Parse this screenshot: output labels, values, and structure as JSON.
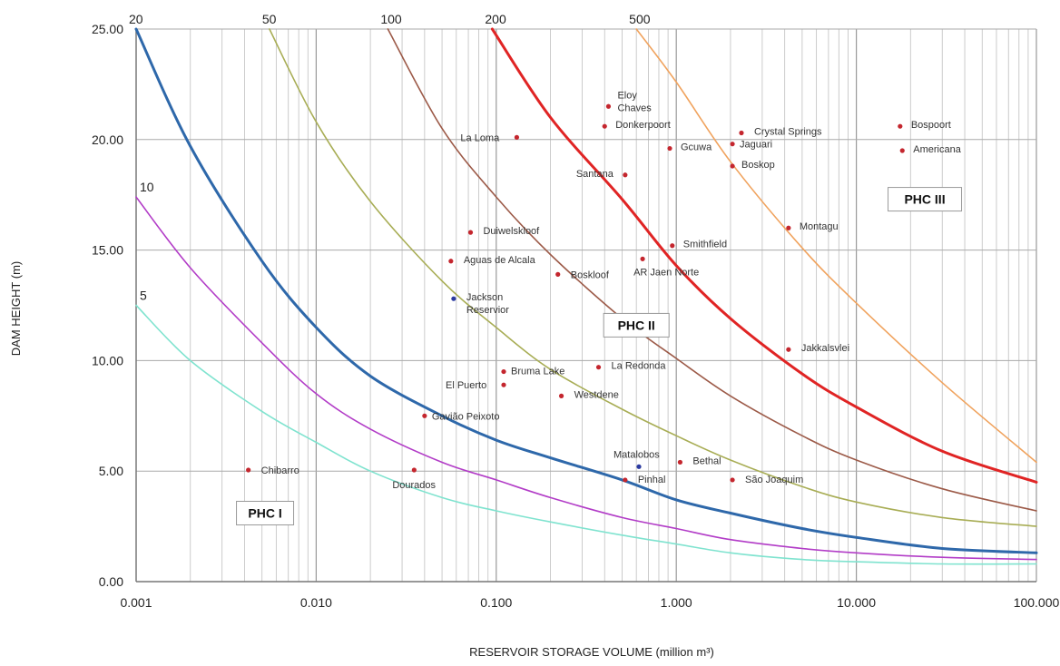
{
  "chart_data": {
    "type": "scatter",
    "x_scale": "log",
    "xlim": [
      0.001,
      100
    ],
    "ylim": [
      0,
      25
    ],
    "grid": true,
    "x_ticks": [
      {
        "value": 0.001,
        "label": "0.001"
      },
      {
        "value": 0.01,
        "label": "0.010"
      },
      {
        "value": 0.1,
        "label": "0.100"
      },
      {
        "value": 1,
        "label": "1.000"
      },
      {
        "value": 10,
        "label": "10.000"
      },
      {
        "value": 100,
        "label": "100.000"
      }
    ],
    "y_ticks": [
      {
        "value": 0,
        "label": "0.00"
      },
      {
        "value": 5,
        "label": "5.00"
      },
      {
        "value": 10,
        "label": "10.00"
      },
      {
        "value": 15,
        "label": "15.00"
      },
      {
        "value": 20,
        "label": "20.00"
      },
      {
        "value": 25,
        "label": "25.00"
      }
    ],
    "xlabel": "RESERVOIR STORAGE VOLUME (million m³)",
    "ylabel": "DAM HEIGHT (m)",
    "curves": [
      {
        "name": "5",
        "color": "#7fe3cf",
        "width": 1.6,
        "points": [
          [
            0.001,
            12.5
          ],
          [
            0.002,
            10.0
          ],
          [
            0.005,
            7.7
          ],
          [
            0.01,
            6.3
          ],
          [
            0.02,
            5.0
          ],
          [
            0.05,
            3.8
          ],
          [
            0.1,
            3.2
          ],
          [
            0.2,
            2.7
          ],
          [
            0.5,
            2.1
          ],
          [
            1,
            1.7
          ],
          [
            2,
            1.3
          ],
          [
            5,
            1.0
          ],
          [
            10,
            0.9
          ],
          [
            30,
            0.8
          ],
          [
            100,
            0.8
          ]
        ]
      },
      {
        "name": "10",
        "color": "#b23cc7",
        "width": 1.6,
        "points": [
          [
            0.001,
            17.4
          ],
          [
            0.002,
            14.2
          ],
          [
            0.005,
            10.8
          ],
          [
            0.01,
            8.5
          ],
          [
            0.02,
            6.9
          ],
          [
            0.05,
            5.4
          ],
          [
            0.1,
            4.6
          ],
          [
            0.2,
            3.8
          ],
          [
            0.5,
            2.9
          ],
          [
            1,
            2.4
          ],
          [
            2,
            1.9
          ],
          [
            5,
            1.5
          ],
          [
            10,
            1.3
          ],
          [
            30,
            1.1
          ],
          [
            100,
            1.0
          ]
        ]
      },
      {
        "name": "20",
        "color": "#2e68aa",
        "width": 3,
        "points": [
          [
            0.001,
            25.0
          ],
          [
            0.002,
            19.7
          ],
          [
            0.005,
            14.5
          ],
          [
            0.01,
            11.5
          ],
          [
            0.02,
            9.3
          ],
          [
            0.05,
            7.5
          ],
          [
            0.1,
            6.4
          ],
          [
            0.2,
            5.6
          ],
          [
            0.5,
            4.6
          ],
          [
            1,
            3.7
          ],
          [
            2,
            3.1
          ],
          [
            5,
            2.4
          ],
          [
            10,
            2.0
          ],
          [
            30,
            1.5
          ],
          [
            100,
            1.3
          ]
        ]
      },
      {
        "name": "50",
        "color": "#a8ad55",
        "width": 1.6,
        "points": [
          [
            0.0055,
            25.0
          ],
          [
            0.01,
            20.8
          ],
          [
            0.02,
            17.2
          ],
          [
            0.05,
            13.6
          ],
          [
            0.1,
            11.5
          ],
          [
            0.2,
            9.6
          ],
          [
            0.5,
            7.8
          ],
          [
            1,
            6.6
          ],
          [
            2,
            5.5
          ],
          [
            5,
            4.3
          ],
          [
            10,
            3.6
          ],
          [
            30,
            2.9
          ],
          [
            100,
            2.5
          ]
        ]
      },
      {
        "name": "100",
        "color": "#9c5a48",
        "width": 1.6,
        "points": [
          [
            0.025,
            25.0
          ],
          [
            0.05,
            20.5
          ],
          [
            0.1,
            17.4
          ],
          [
            0.2,
            14.8
          ],
          [
            0.5,
            11.9
          ],
          [
            1,
            10.1
          ],
          [
            2,
            8.4
          ],
          [
            5,
            6.6
          ],
          [
            10,
            5.5
          ],
          [
            30,
            4.2
          ],
          [
            100,
            3.2
          ]
        ]
      },
      {
        "name": "200",
        "color": "#e02424",
        "width": 3,
        "points": [
          [
            0.095,
            25.0
          ],
          [
            0.2,
            21.0
          ],
          [
            0.5,
            17.3
          ],
          [
            1,
            14.3
          ],
          [
            2,
            11.9
          ],
          [
            5,
            9.4
          ],
          [
            10,
            7.9
          ],
          [
            30,
            5.9
          ],
          [
            100,
            4.5
          ]
        ]
      },
      {
        "name": "500",
        "color": "#f0a35e",
        "width": 1.6,
        "points": [
          [
            0.6,
            25.0
          ],
          [
            1,
            22.6
          ],
          [
            2,
            19.0
          ],
          [
            5,
            15.1
          ],
          [
            10,
            12.6
          ],
          [
            30,
            9.0
          ],
          [
            100,
            5.4
          ]
        ]
      }
    ],
    "points": [
      {
        "label": "Chibarro",
        "x": 0.0042,
        "y": 5.05,
        "color": "#c4262e",
        "lx": 14,
        "ly": 0
      },
      {
        "label": "Dourados",
        "x": 0.035,
        "y": 5.05,
        "color": "#c4262e",
        "lx": -24,
        "ly": 16
      },
      {
        "label": "Gavião Peixoto",
        "x": 0.04,
        "y": 7.5,
        "color": "#c4262e",
        "lx": 8,
        "ly": 0
      },
      {
        "label": "El Puerto",
        "x": 0.11,
        "y": 8.9,
        "color": "#c4262e",
        "lx": -64,
        "ly": 0
      },
      {
        "label": "Bruma Lake",
        "x": 0.11,
        "y": 9.5,
        "color": "#c4262e",
        "lx": 8,
        "ly": -1
      },
      {
        "label": "La Redonda",
        "x": 0.37,
        "y": 9.7,
        "color": "#c4262e",
        "lx": 14,
        "ly": -2
      },
      {
        "label": "Westdene",
        "x": 0.23,
        "y": 8.4,
        "color": "#c4262e",
        "lx": 14,
        "ly": -2
      },
      {
        "label": "Matalobos",
        "x": 0.62,
        "y": 5.2,
        "color": "#2b3aa0",
        "lx": -28,
        "ly": -14
      },
      {
        "label": "Pinhal",
        "x": 0.52,
        "y": 4.6,
        "color": "#c4262e",
        "lx": 14,
        "ly": -1
      },
      {
        "label": "Bethal",
        "x": 1.05,
        "y": 5.4,
        "color": "#c4262e",
        "lx": 14,
        "ly": -2
      },
      {
        "label": "São Joaquim",
        "x": 2.05,
        "y": 4.6,
        "color": "#c4262e",
        "lx": 14,
        "ly": -1
      },
      {
        "label": "Jakkalsvlei",
        "x": 4.2,
        "y": 10.5,
        "color": "#c4262e",
        "lx": 14,
        "ly": -2
      },
      {
        "label": "Jackson",
        "label2": "Reservior",
        "x": 0.058,
        "y": 12.8,
        "color": "#2b3aa0",
        "lx": 14,
        "ly": -2
      },
      {
        "label": "Aguas de Alcala",
        "x": 0.056,
        "y": 14.5,
        "color": "#c4262e",
        "lx": 14,
        "ly": -2
      },
      {
        "label": "Duiwelskloof",
        "x": 0.072,
        "y": 15.8,
        "color": "#c4262e",
        "lx": 14,
        "ly": -2
      },
      {
        "label": "Boskloof",
        "x": 0.22,
        "y": 13.9,
        "color": "#c4262e",
        "lx": 14,
        "ly": 0
      },
      {
        "label": "AR Jaen Norte",
        "x": 0.65,
        "y": 14.6,
        "color": "#c4262e",
        "lx": -10,
        "ly": 14
      },
      {
        "label": "Smithfield",
        "x": 0.95,
        "y": 15.2,
        "color": "#c4262e",
        "lx": 12,
        "ly": -2
      },
      {
        "label": "Montagu",
        "x": 4.2,
        "y": 16.0,
        "color": "#c4262e",
        "lx": 12,
        "ly": -2
      },
      {
        "label": "La Loma",
        "x": 0.13,
        "y": 20.1,
        "color": "#c4262e",
        "lx": -62,
        "ly": 0
      },
      {
        "label": "Santana",
        "x": 0.52,
        "y": 18.4,
        "color": "#c4262e",
        "lx": -54,
        "ly": -2
      },
      {
        "label": "Eloy",
        "label2": "Chaves",
        "x": 0.42,
        "y": 21.5,
        "color": "#c4262e",
        "lx": 10,
        "ly": -13
      },
      {
        "label": "Donkerpoort",
        "x": 0.4,
        "y": 20.6,
        "color": "#c4262e",
        "lx": 12,
        "ly": -2
      },
      {
        "label": "Gcuwa",
        "x": 0.92,
        "y": 19.6,
        "color": "#c4262e",
        "lx": 12,
        "ly": -2
      },
      {
        "label": "Crystal Springs",
        "x": 2.3,
        "y": 20.3,
        "color": "#c4262e",
        "lx": 14,
        "ly": -2
      },
      {
        "label": "Jaguari",
        "x": 2.05,
        "y": 19.8,
        "color": "#c4262e",
        "lx": 8,
        "ly": 0
      },
      {
        "label": "Boskop",
        "x": 2.05,
        "y": 18.8,
        "color": "#c4262e",
        "lx": 10,
        "ly": -2
      },
      {
        "label": "Bospoort",
        "x": 17.5,
        "y": 20.6,
        "color": "#c4262e",
        "lx": 12,
        "ly": -2
      },
      {
        "label": "Americana",
        "x": 18,
        "y": 19.5,
        "color": "#c4262e",
        "lx": 12,
        "ly": -2
      }
    ],
    "annotations": [
      {
        "label": "PHC I",
        "x": 0.0052,
        "y": 3.1
      },
      {
        "label": "PHC II",
        "x": 0.6,
        "y": 11.6
      },
      {
        "label": "PHC III",
        "x": 24,
        "y": 17.3
      }
    ]
  }
}
